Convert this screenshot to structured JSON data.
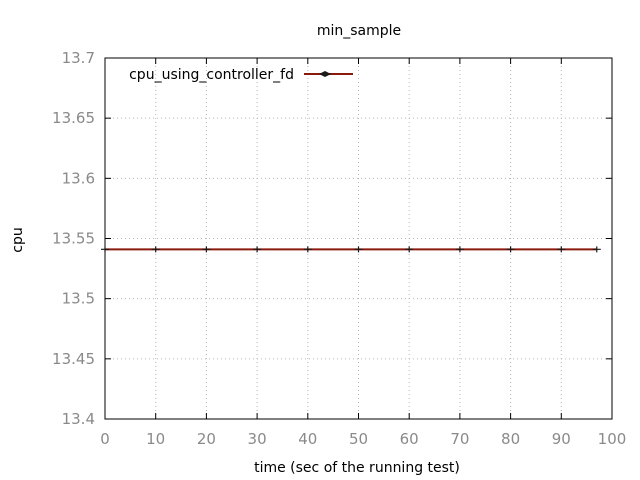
{
  "chart_data": {
    "type": "line",
    "title": "min_sample",
    "xlabel": "time (sec of the running test)",
    "ylabel": "cpu",
    "xlim": [
      0,
      100
    ],
    "ylim": [
      13.4,
      13.7
    ],
    "x_ticks": [
      "0",
      "10",
      "20",
      "30",
      "40",
      "50",
      "60",
      "70",
      "80",
      "90",
      "100"
    ],
    "y_ticks": [
      "13.4",
      "13.45",
      "13.5",
      "13.55",
      "13.6",
      "13.65",
      "13.7"
    ],
    "grid": true,
    "legend_position": "top-left",
    "series": [
      {
        "name": "cpu_using_controller_fd",
        "color": "#8b1a0e",
        "marker": "plus",
        "x": [
          0,
          10,
          20,
          30,
          40,
          50,
          60,
          70,
          80,
          90,
          97
        ],
        "y": [
          13.541,
          13.541,
          13.541,
          13.541,
          13.541,
          13.541,
          13.541,
          13.541,
          13.541,
          13.541,
          13.541
        ]
      }
    ]
  }
}
